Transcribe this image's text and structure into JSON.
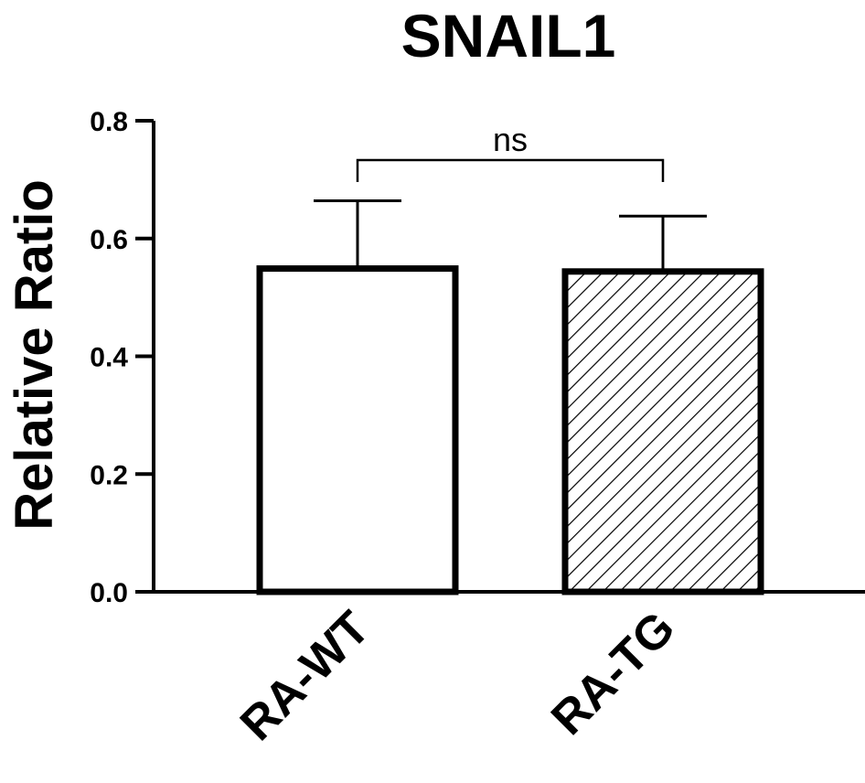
{
  "chart_data": {
    "type": "bar",
    "title": "SNAIL1",
    "xlabel": "",
    "ylabel": "Relative Ratio",
    "ylim": [
      0,
      0.8
    ],
    "yticks": [
      "0.0",
      "0.2",
      "0.4",
      "0.6",
      "0.8"
    ],
    "categories": [
      "RA-WT",
      "RA-TG"
    ],
    "values": [
      0.549,
      0.544
    ],
    "error_upper": [
      0.664,
      0.638
    ],
    "bar_fills": [
      "solid-white",
      "diagonal-hatch"
    ],
    "significance": {
      "label": "ns",
      "between": [
        "RA-WT",
        "RA-TG"
      ]
    },
    "grid": false,
    "legend": "none",
    "colors": {
      "bar_edge": "#000000",
      "bar_fill": "#ffffff",
      "hatch": "#000000"
    }
  }
}
